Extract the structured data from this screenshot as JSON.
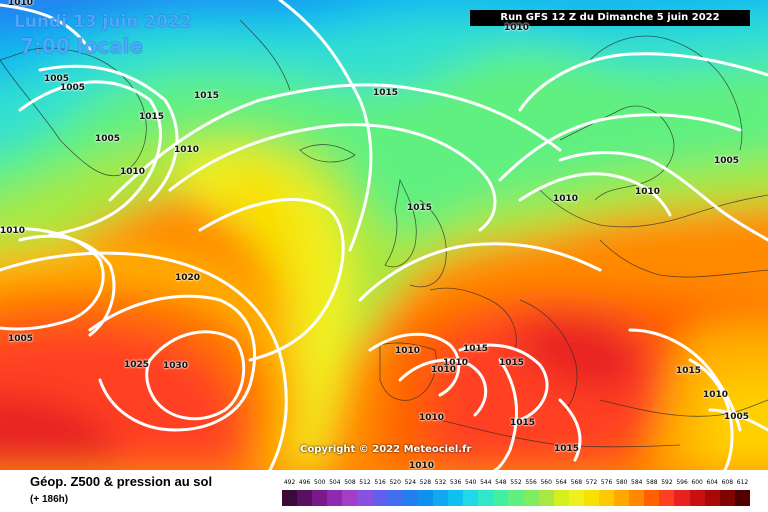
{
  "header": {
    "date_label": "Lundi 13 juin 2022",
    "time_label": "7:00 locale",
    "run_label": "Run GFS 12 Z du Dimanche 5 juin 2022"
  },
  "copyright": "Copyright © 2022 Meteociel.fr",
  "legend": {
    "title": "Géop. Z500 & pression au sol",
    "subtitle": "(+ 186h)",
    "scale_values": [
      "492",
      "496",
      "500",
      "504",
      "508",
      "512",
      "516",
      "520",
      "524",
      "528",
      "532",
      "536",
      "540",
      "544",
      "548",
      "552",
      "556",
      "560",
      "564",
      "568",
      "572",
      "576",
      "580",
      "584",
      "588",
      "592",
      "596",
      "600",
      "604",
      "608",
      "612"
    ],
    "scale_colors": [
      "#3a0a3a",
      "#5a1060",
      "#7a1a8a",
      "#8f2ab0",
      "#a040c8",
      "#8a50e0",
      "#6060f0",
      "#4070f0",
      "#2080f0",
      "#1090ee",
      "#10a8f0",
      "#10c0f0",
      "#20d8e8",
      "#30e8c8",
      "#40f0a0",
      "#60f080",
      "#80ec60",
      "#a8e840",
      "#d0f020",
      "#f0f020",
      "#f8e000",
      "#ffc800",
      "#ffa800",
      "#ff8800",
      "#ff6000",
      "#ff4020",
      "#e82020",
      "#c81010",
      "#a80808",
      "#800404",
      "#500000"
    ]
  },
  "isobars": [
    {
      "value": "1010"
    },
    {
      "value": "1005"
    },
    {
      "value": "1005"
    },
    {
      "value": "1015"
    },
    {
      "value": "1015"
    },
    {
      "value": "1005"
    },
    {
      "value": "1010"
    },
    {
      "value": "1010"
    },
    {
      "value": "1015"
    },
    {
      "value": "1010"
    },
    {
      "value": "1015"
    },
    {
      "value": "1010"
    },
    {
      "value": "1010"
    },
    {
      "value": "1005"
    },
    {
      "value": "1010"
    },
    {
      "value": "1020"
    },
    {
      "value": "1005"
    },
    {
      "value": "1025"
    },
    {
      "value": "1030"
    },
    {
      "value": "1010"
    },
    {
      "value": "1010"
    },
    {
      "value": "1010"
    },
    {
      "value": "1015"
    },
    {
      "value": "1015"
    },
    {
      "value": "1015"
    },
    {
      "value": "1010"
    },
    {
      "value": "1005"
    },
    {
      "value": "1010"
    },
    {
      "value": "1015"
    },
    {
      "value": "1015"
    },
    {
      "value": "1010"
    },
    {
      "value": "1010"
    }
  ]
}
